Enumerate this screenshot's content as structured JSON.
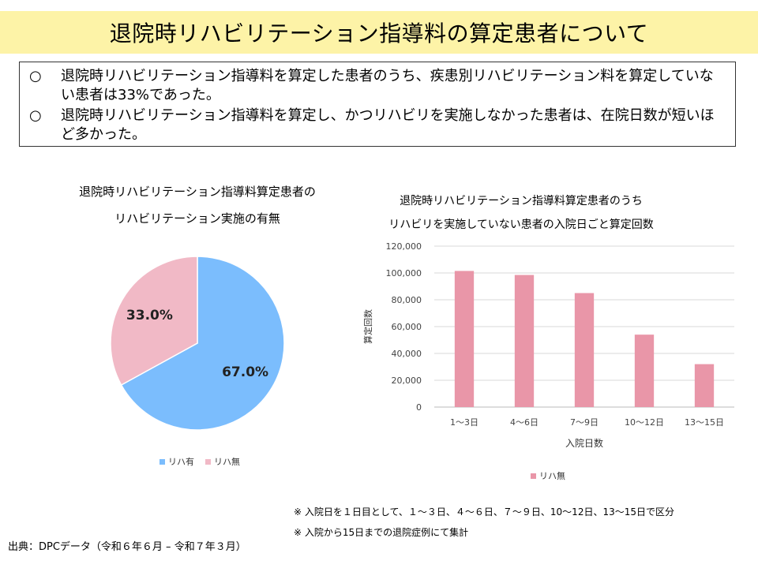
{
  "title": "退院時リハビリテーション指導料の算定患者について",
  "summary": [
    {
      "mark": "○",
      "text": "退院時リハビリテーション指導料を算定した患者のうち、疾患別リハビリテーション料を算定していない患者は33%であった。"
    },
    {
      "mark": "○",
      "text": "退院時リハビリテーション指導料を算定し、かつリハビリを実施しなかった患者は、在院日数が短いほど多かった。"
    }
  ],
  "pie": {
    "title_line1": "退院時リハビリテーション指導料算定患者の",
    "title_line2": "リハビリテーション実施の有無"
  },
  "bar": {
    "title_line1": "退院時リハビリテーション指導料算定患者のうち",
    "title_line2": "リハビリを実施していない患者の入院日ごと算定回数"
  },
  "chart_data": [
    {
      "type": "pie",
      "title": "退院時リハビリテーション指導料算定患者の リハビリテーション実施の有無",
      "categories": [
        "リハ有",
        "リハ無"
      ],
      "values": [
        67.0,
        33.0
      ],
      "labels": [
        "67.0%",
        "33.0%"
      ],
      "colors": [
        "#7bbdfd",
        "#f1b9c6"
      ],
      "legend": "bottom"
    },
    {
      "type": "bar",
      "title": "退院時リハビリテーション指導料算定患者のうち リハビリを実施していない患者の入院日ごと算定回数",
      "categories": [
        "1～3日",
        "4～6日",
        "7～9日",
        "10～12日",
        "13～15日"
      ],
      "series": [
        {
          "name": "リハ無",
          "values": [
            101500,
            98500,
            85000,
            54000,
            32000
          ]
        }
      ],
      "xlabel": "入院日数",
      "ylabel": "算定回数",
      "ylim": [
        0,
        120000
      ],
      "yticks": [
        0,
        20000,
        40000,
        60000,
        80000,
        100000,
        120000
      ],
      "ytick_labels": [
        "0",
        "20,000",
        "40,000",
        "60,000",
        "80,000",
        "100,000",
        "120,000"
      ],
      "grid": true,
      "color": "#e996a8",
      "legend": "bottom"
    }
  ],
  "notes": [
    "※ 入院日を１日目として、１～３日、４～６日、７～９日、10～12日、13～15日で区分",
    "※ 入院から15日までの退院症例にて集計"
  ],
  "source": "出典：DPCデータ（令和６年６月 – 令和７年３月）"
}
